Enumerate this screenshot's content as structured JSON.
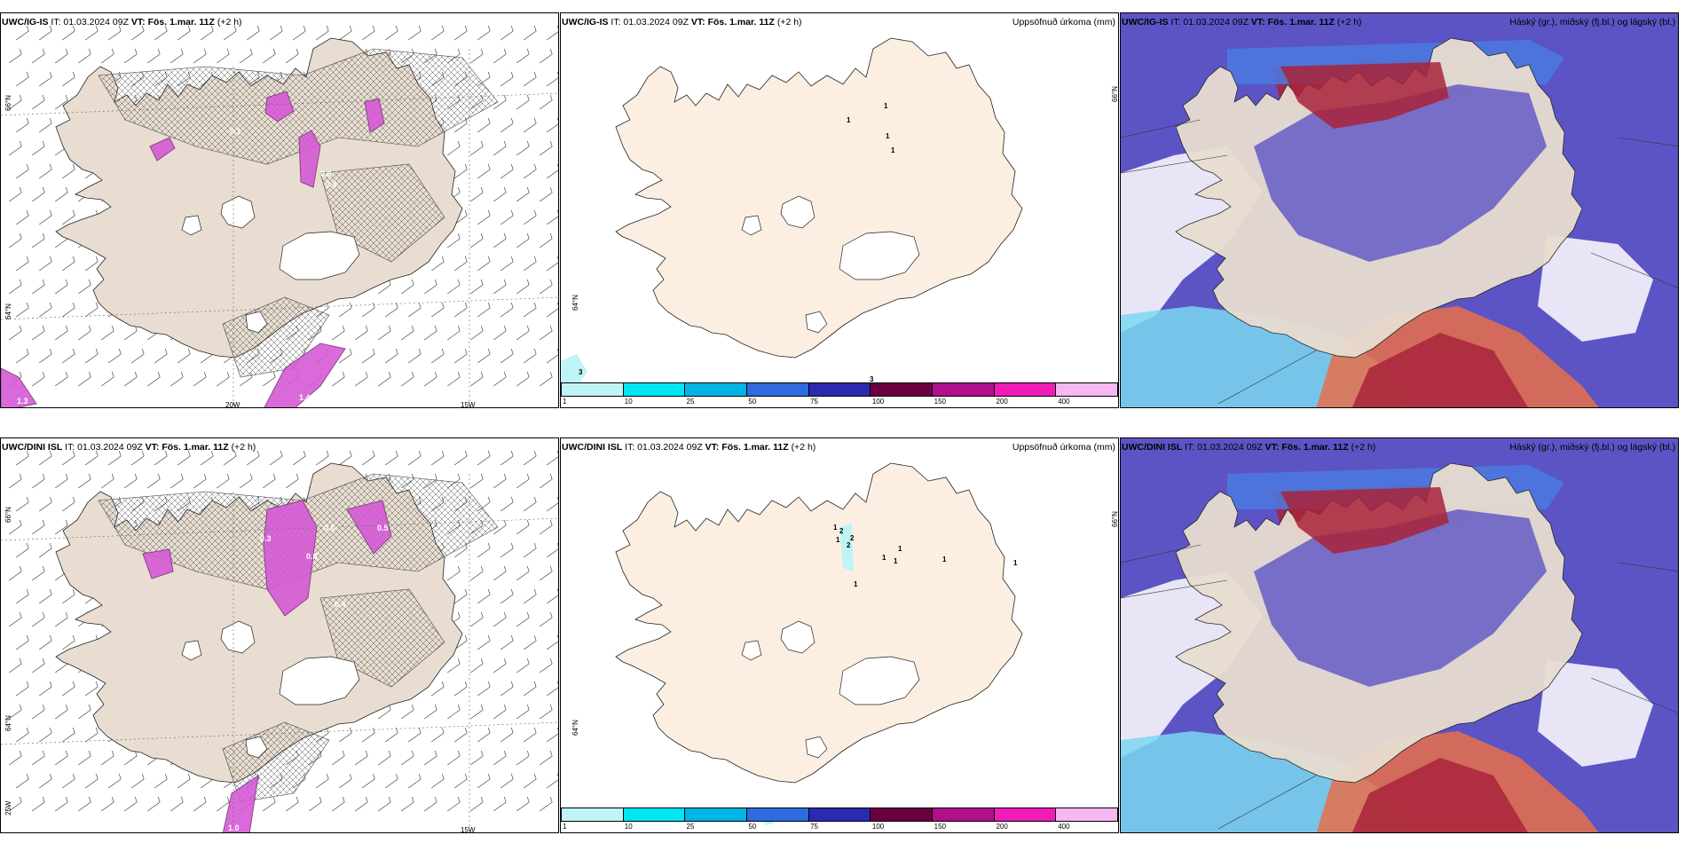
{
  "colors": {
    "land": "#e8ddd0",
    "land_precip_panel": "#fcefe2",
    "snow_magenta": "#d65ad6",
    "snow_dark": "#7a3a7a",
    "cloud_high": "#5c54c4",
    "cloud_mid": "#4a7ae0",
    "cloud_low_cyan": "#7ad8f0",
    "cloud_red": "#a8233a",
    "cloud_orange": "#e8704a"
  },
  "rows": [
    {
      "wind_panel": {
        "model": "UWC/IG-IS",
        "it_label": "IT: 01.03.2024 09Z",
        "vt_label": "VT: Fös. 1.mar. 11Z",
        "lead": "(+2 h)",
        "lat_labels": [
          "66°N",
          "64°N"
        ],
        "lon_labels": [
          "20W",
          "15W"
        ],
        "values": [
          "0.2",
          "1.3",
          "1.4",
          "0.6",
          "0.4",
          "0.1"
        ]
      },
      "precip_panel": {
        "model": "UWC/IG-IS",
        "it_label": "IT: 01.03.2024 09Z",
        "vt_label": "VT: Fös. 1.mar. 11Z",
        "lead": "(+2 h)",
        "title": "Uppsöfnuð úrkoma (mm)",
        "lat_labels": [
          "66°N",
          "64°N"
        ],
        "values": [
          "1",
          "1",
          "1",
          "1",
          "3",
          "3"
        ]
      },
      "cloud_panel": {
        "model": "UWC/IG-IS",
        "it_label": "IT: 01.03.2024 09Z",
        "vt_label": "VT: Fös. 1.mar. 11Z",
        "lead": "(+2 h)",
        "title": "Háský (gr.), miðský (fj.bl.) og lágský (bl.)"
      }
    },
    {
      "wind_panel": {
        "model": "UWC/DINI ISL",
        "it_label": "IT: 01.03.2024 09Z",
        "vt_label": "VT: Fös. 1.mar. 11Z",
        "lead": "(+2 h)",
        "lat_labels": [
          "66°N",
          "64°N"
        ],
        "lon_labels": [
          "25W",
          "15W"
        ],
        "values": [
          "0.6",
          "0.5",
          "0.4",
          "1.0",
          "0.3",
          "0.8"
        ]
      },
      "precip_panel": {
        "model": "UWC/DINI ISL",
        "it_label": "IT: 01.03.2024 09Z",
        "vt_label": "VT: Fös. 1.mar. 11Z",
        "lead": "(+2 h)",
        "title": "Uppsöfnuð úrkoma (mm)",
        "lat_labels": [
          "66°N",
          "64°N"
        ],
        "values": [
          "1",
          "2",
          "2",
          "2",
          "1",
          "1",
          "1",
          "1",
          "1",
          "1",
          "1"
        ]
      },
      "cloud_panel": {
        "model": "UWC/DINI ISL",
        "it_label": "IT: 01.03.2024 09Z",
        "vt_label": "VT: Fös. 1.mar. 11Z",
        "lead": "(+2 h)",
        "title": "Háský (gr.), miðský (fj.bl.) og lágský (bl.)"
      }
    }
  ],
  "precip_legend": {
    "colors": [
      "#bff4f7",
      "#00e6f0",
      "#00b4e6",
      "#2e6ae0",
      "#2a2ab0",
      "#6a0040",
      "#b0108a",
      "#f01cb8",
      "#f5b8f0"
    ],
    "ticks": [
      "1",
      "10",
      "25",
      "50",
      "75",
      "100",
      "150",
      "200",
      "400"
    ]
  }
}
